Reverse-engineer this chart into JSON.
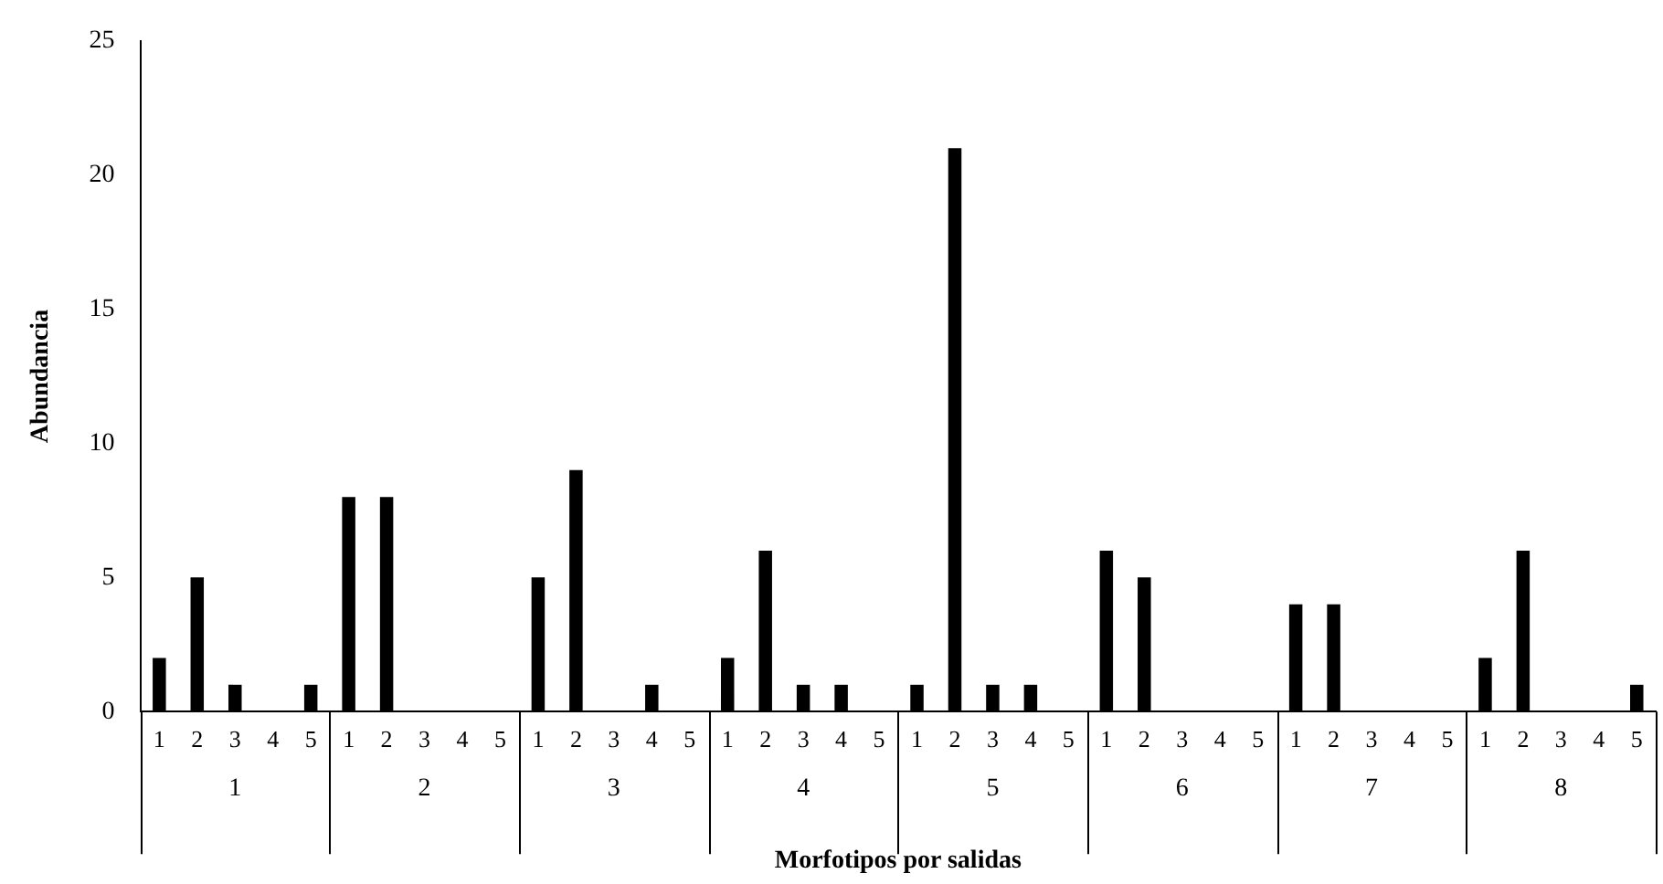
{
  "chart_data": {
    "type": "bar",
    "xlabel": "Morfotipos por salidas",
    "ylabel": "Abundancia",
    "categories": [
      "1",
      "2",
      "3",
      "4",
      "5",
      "1",
      "2",
      "3",
      "4",
      "5",
      "1",
      "2",
      "3",
      "4",
      "5",
      "1",
      "2",
      "3",
      "4",
      "5",
      "1",
      "2",
      "3",
      "4",
      "5",
      "1",
      "2",
      "3",
      "4",
      "5",
      "1",
      "2",
      "3",
      "4",
      "5",
      "1",
      "2",
      "3",
      "4",
      "5"
    ],
    "values": [
      2,
      5,
      1,
      0,
      1,
      8,
      8,
      0,
      0,
      0,
      5,
      9,
      0,
      1,
      0,
      2,
      6,
      1,
      1,
      0,
      1,
      21,
      1,
      1,
      0,
      6,
      5,
      0,
      0,
      0,
      4,
      4,
      0,
      0,
      0,
      2,
      6,
      0,
      0,
      1
    ],
    "color": "#000000",
    "annotations": [
      "1",
      "2",
      "3",
      "4",
      "5",
      "6",
      "7",
      "8"
    ],
    "ylim": [
      0,
      25
    ],
    "yticks": [
      0,
      5,
      10,
      15,
      20,
      25
    ],
    "grid": false,
    "legend": false
  }
}
